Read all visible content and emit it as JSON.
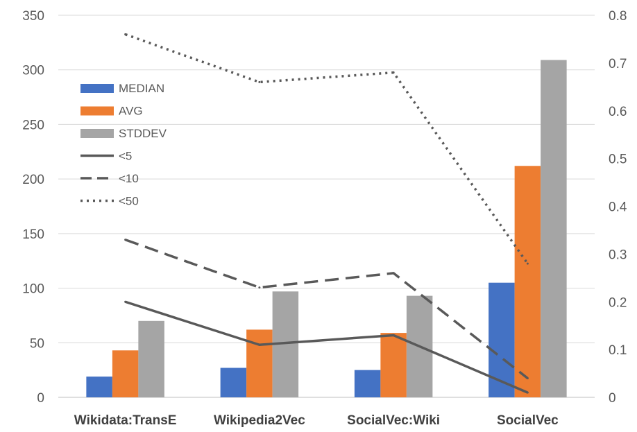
{
  "chart_data": {
    "type": "bar",
    "categories": [
      "Wikidata:TransE",
      "Wikipedia2Vec",
      "SocialVec:Wiki",
      "SocialVec"
    ],
    "series": [
      {
        "name": "MEDIAN",
        "kind": "bar",
        "axis": "left",
        "color": "#4472C4",
        "values": [
          19,
          27,
          25,
          105
        ]
      },
      {
        "name": "AVG",
        "kind": "bar",
        "axis": "left",
        "color": "#ED7D31",
        "values": [
          43,
          62,
          59,
          212
        ]
      },
      {
        "name": "STDDEV",
        "kind": "bar",
        "axis": "left",
        "color": "#A5A5A5",
        "values": [
          70,
          97,
          93,
          309
        ]
      },
      {
        "name": "<5",
        "kind": "line",
        "style": "solid",
        "axis": "right",
        "color": "#595959",
        "values": [
          0.2,
          0.11,
          0.13,
          0.01
        ]
      },
      {
        "name": "<10",
        "kind": "line",
        "style": "dashed",
        "axis": "right",
        "color": "#595959",
        "values": [
          0.33,
          0.23,
          0.26,
          0.04
        ]
      },
      {
        "name": "<50",
        "kind": "line",
        "style": "dotted",
        "axis": "right",
        "color": "#595959",
        "values": [
          0.76,
          0.66,
          0.68,
          0.28
        ]
      }
    ],
    "y_left": {
      "range": [
        0,
        350
      ],
      "ticks": [
        "0",
        "50",
        "100",
        "150",
        "200",
        "250",
        "300",
        "350"
      ]
    },
    "y_right": {
      "range": [
        0,
        0.8
      ],
      "ticks": [
        "0",
        "0.1",
        "0.2",
        "0.3",
        "0.4",
        "0.5",
        "0.6",
        "0.7",
        "0.8"
      ]
    },
    "grid": true,
    "legend_position": "top-left",
    "title": "",
    "xlabel": "",
    "ylabel": ""
  }
}
